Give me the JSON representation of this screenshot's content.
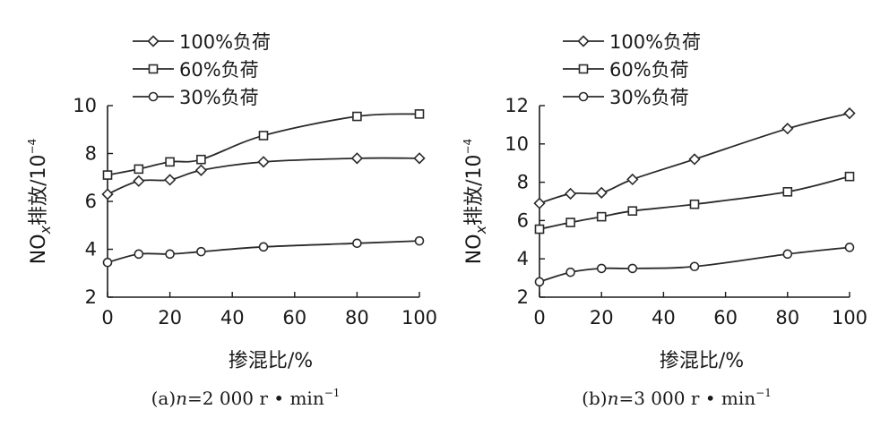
{
  "chart_data": [
    {
      "type": "line",
      "caption": {
        "prefix": "(a)",
        "var": "n",
        "value": "=2 000 r • min",
        "sup": "−1"
      },
      "xlabel": "掺混比/%",
      "ylabel": {
        "main": "NO",
        "sub": "x",
        "rest": "排放/10",
        "sup": "−4"
      },
      "xlim": [
        0,
        100
      ],
      "ylim": [
        2,
        10
      ],
      "xticks": [
        "0",
        "20",
        "40",
        "60",
        "80",
        "100"
      ],
      "yticks": [
        "2",
        "4",
        "6",
        "8",
        "10"
      ],
      "x": [
        0,
        10,
        20,
        30,
        50,
        80,
        100
      ],
      "series": [
        {
          "name": "100%负荷",
          "marker": "diamond",
          "values": [
            6.3,
            6.85,
            6.9,
            7.3,
            7.65,
            7.8,
            7.8
          ]
        },
        {
          "name": "60%负荷",
          "marker": "square",
          "values": [
            7.1,
            7.35,
            7.65,
            7.75,
            8.75,
            9.55,
            9.65
          ]
        },
        {
          "name": "30%负荷",
          "marker": "circle",
          "values": [
            3.45,
            3.8,
            3.8,
            3.9,
            4.1,
            4.25,
            4.35
          ]
        }
      ],
      "legend": "top-left"
    },
    {
      "type": "line",
      "caption": {
        "prefix": "(b)",
        "var": "n",
        "value": "=3 000 r • min",
        "sup": "−1"
      },
      "xlabel": "掺混比/%",
      "ylabel": {
        "main": "NO",
        "sub": "x",
        "rest": "排放/10",
        "sup": "−4"
      },
      "xlim": [
        0,
        100
      ],
      "ylim": [
        2,
        12
      ],
      "xticks": [
        "0",
        "20",
        "40",
        "60",
        "80",
        "100"
      ],
      "yticks": [
        "2",
        "4",
        "6",
        "8",
        "10",
        "12"
      ],
      "x": [
        0,
        10,
        20,
        30,
        50,
        80,
        100
      ],
      "series": [
        {
          "name": "100%负荷",
          "marker": "diamond",
          "values": [
            6.9,
            7.4,
            7.45,
            8.15,
            9.2,
            10.8,
            11.6
          ]
        },
        {
          "name": "60%负荷",
          "marker": "square",
          "values": [
            5.55,
            5.9,
            6.2,
            6.5,
            6.85,
            7.5,
            8.3
          ]
        },
        {
          "name": "30%负荷",
          "marker": "circle",
          "values": [
            2.8,
            3.3,
            3.5,
            3.5,
            3.6,
            4.25,
            4.6
          ]
        }
      ],
      "legend": "top-left"
    }
  ]
}
